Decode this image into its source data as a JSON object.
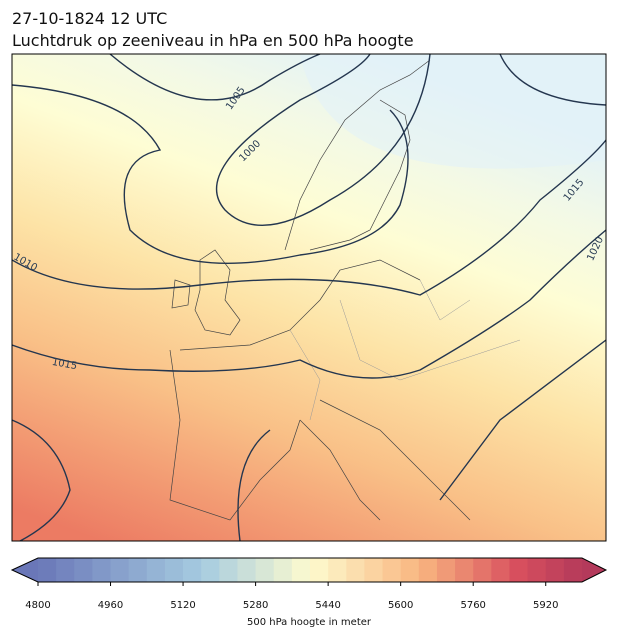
{
  "header": {
    "title": "27-10-1824 12 UTC",
    "subtitle": "Luchtdruk op zeeniveau in hPa en 500 hPa hoogte"
  },
  "map": {
    "contour_labels": [
      "1005",
      "1000",
      "1010",
      "1015",
      "1015",
      "1020"
    ]
  },
  "colorbar": {
    "lim": [
      4800,
      6000
    ],
    "ticks": [
      4800,
      4960,
      5120,
      5280,
      5440,
      5600,
      5760,
      5920
    ],
    "label": "500 hPa hoogte in meter"
  }
}
